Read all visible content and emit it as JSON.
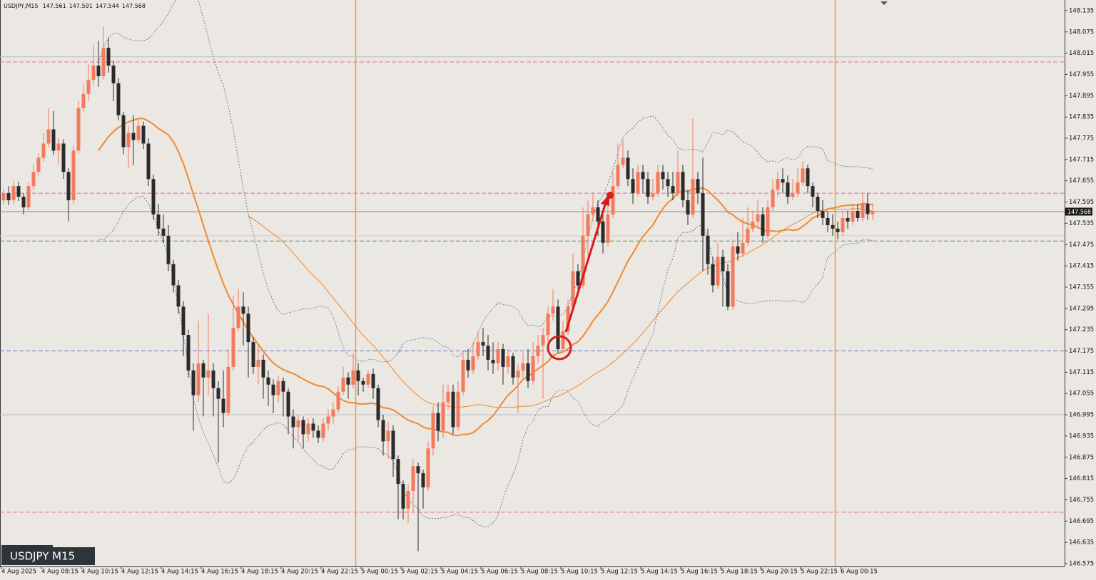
{
  "chart_data": {
    "type": "candlestick",
    "title": "USDJPY,M15",
    "label": "USDJPY M15",
    "up_color": "#f47a5c",
    "down_color": "#2b2b2b",
    "categories": [
      "4 Aug 2025",
      null,
      null,
      null,
      null,
      null,
      null,
      null,
      "4 Aug 08:15",
      null,
      null,
      null,
      null,
      null,
      null,
      null,
      "4 Aug 10:15",
      null,
      null,
      null,
      null,
      null,
      null,
      null,
      "4 Aug 12:15",
      null,
      null,
      null,
      null,
      null,
      null,
      null,
      "4 Aug 14:15",
      null,
      null,
      null,
      null,
      null,
      null,
      null,
      "4 Aug 16:15",
      null,
      null,
      null,
      null,
      null,
      null,
      null,
      "4 Aug 18:15",
      null,
      null,
      null,
      null,
      null,
      null,
      null,
      "4 Aug 20:15",
      null,
      null,
      null,
      null,
      null,
      null,
      null,
      "4 Aug 22:15",
      null,
      null,
      null,
      null,
      null,
      null,
      null,
      "5 Aug 00:15",
      null,
      null,
      null,
      null,
      null,
      null,
      null,
      "5 Aug 02:15",
      null,
      null,
      null,
      null,
      null,
      null,
      null,
      "5 Aug 04:15",
      null,
      null,
      null,
      null,
      null,
      null,
      null,
      "5 Aug 06:15",
      null,
      null,
      null,
      null,
      null,
      null,
      null,
      "5 Aug 08:15",
      null,
      null,
      null,
      null,
      null,
      null,
      null,
      "5 Aug 10:15",
      null,
      null,
      null,
      null,
      null,
      null,
      null,
      "5 Aug 12:15",
      null,
      null,
      null,
      null,
      null,
      null,
      null,
      "5 Aug 14:15",
      null,
      null,
      null,
      null,
      null,
      null,
      null,
      "5 Aug 16:15",
      null,
      null,
      null,
      null,
      null,
      null,
      null,
      "5 Aug 18:15",
      null,
      null,
      null,
      null,
      null,
      null,
      null,
      "5 Aug 20:15",
      null,
      null,
      null,
      null,
      null,
      null,
      null,
      "5 Aug 22:15",
      null,
      null,
      null,
      null,
      null,
      null,
      null,
      "6 Aug 00:15",
      null,
      null,
      null,
      null,
      null,
      null
    ],
    "open": [
      147.6,
      147.62,
      147.6,
      147.64,
      147.61,
      147.58,
      147.64,
      147.68,
      147.72,
      147.76,
      147.8,
      147.74,
      147.76,
      147.68,
      147.6,
      147.74,
      147.86,
      147.9,
      147.94,
      147.98,
      147.95,
      148.03,
      147.98,
      147.93,
      147.84,
      147.75,
      147.79,
      147.77,
      147.81,
      147.76,
      147.66,
      147.56,
      147.52,
      147.5,
      147.42,
      147.36,
      147.3,
      147.22,
      147.12,
      147.05,
      147.14,
      147.1,
      147.12,
      147.07,
      147.04,
      147.0,
      147.13,
      147.24,
      147.3,
      147.28,
      147.2,
      147.13,
      147.15,
      147.1,
      147.08,
      147.05,
      147.09,
      147.06,
      146.99,
      146.96,
      146.98,
      146.94,
      146.97,
      146.95,
      146.93,
      146.97,
      146.99,
      147.01,
      147.06,
      147.1,
      147.08,
      147.12,
      147.09,
      147.08,
      147.11,
      147.07,
      146.98,
      146.92,
      146.95,
      146.87,
      146.8,
      146.73,
      146.78,
      146.85,
      146.83,
      146.79,
      146.9,
      147.0,
      146.95,
      147.03,
      147.06,
      146.96,
      147.06,
      147.15,
      147.12,
      147.16,
      147.2,
      147.19,
      147.15,
      147.14,
      147.18,
      147.13,
      147.16,
      147.1,
      147.12,
      147.14,
      147.09,
      147.16,
      147.19,
      147.22,
      147.28,
      147.3,
      147.18,
      147.23,
      147.3,
      147.4,
      147.36,
      147.5,
      147.56,
      147.58,
      147.54,
      147.48,
      147.56,
      147.64,
      147.7,
      147.72,
      147.66,
      147.62,
      147.68,
      147.66,
      147.61,
      147.62,
      147.68,
      147.66,
      147.64,
      147.62,
      147.68,
      147.6,
      147.56,
      147.66,
      147.62,
      147.5,
      147.42,
      147.36,
      147.44,
      147.4,
      147.3,
      147.47,
      147.45,
      147.48,
      147.52,
      147.54,
      147.56,
      147.5,
      147.58,
      147.63,
      147.66,
      147.65,
      147.61,
      147.62,
      147.65,
      147.69,
      147.64,
      147.61,
      147.57,
      147.55,
      147.53,
      147.52,
      147.51,
      147.55,
      147.54,
      147.57,
      147.55,
      147.59,
      147.561
    ],
    "high": [
      147.632,
      147.64,
      147.655,
      147.652,
      147.62,
      147.651,
      147.7,
      147.733,
      147.79,
      147.86,
      147.852,
      147.775,
      147.772,
      147.69,
      147.755,
      147.88,
      147.93,
      147.985,
      148.04,
      148.05,
      148.09,
      148.06,
      147.995,
      147.945,
      147.85,
      147.81,
      147.84,
      147.83,
      147.822,
      147.775,
      147.672,
      147.59,
      147.56,
      147.53,
      147.432,
      147.375,
      147.315,
      147.235,
      147.14,
      147.26,
      147.15,
      147.28,
      147.14,
      147.09,
      147.12,
      147.18,
      147.33,
      147.35,
      147.34,
      147.3,
      147.215,
      147.19,
      147.165,
      147.12,
      147.095,
      147.105,
      147.1,
      147.07,
      147.01,
      146.995,
      146.99,
      146.985,
      146.985,
      146.965,
      146.985,
      147.01,
      147.03,
      147.075,
      147.13,
      147.115,
      147.17,
      147.14,
      147.1,
      147.12,
      147.125,
      147.08,
      146.995,
      146.975,
      146.965,
      146.88,
      146.81,
      146.8,
      146.87,
      146.86,
      146.84,
      146.92,
      147.02,
      147.03,
      147.08,
      147.08,
      147.08,
      147.09,
      147.17,
      147.18,
      147.2,
      147.23,
      147.24,
      147.22,
      147.2,
      147.2,
      147.195,
      147.18,
      147.17,
      147.14,
      147.17,
      147.18,
      147.2,
      147.22,
      147.24,
      147.3,
      147.35,
      147.32,
      147.26,
      147.32,
      147.45,
      147.42,
      147.58,
      147.6,
      147.62,
      147.6,
      147.56,
      147.6,
      147.68,
      147.76,
      147.77,
      147.74,
      147.69,
      147.7,
      147.7,
      147.68,
      147.66,
      147.7,
      147.7,
      147.68,
      147.68,
      147.74,
      147.7,
      147.63,
      147.83,
      147.68,
      147.72,
      147.52,
      147.44,
      147.48,
      147.46,
      147.42,
      147.49,
      147.51,
      147.55,
      147.58,
      147.57,
      147.6,
      147.58,
      147.6,
      147.66,
      147.68,
      147.69,
      147.67,
      147.66,
      147.69,
      147.71,
      147.7,
      147.65,
      147.62,
      147.6,
      147.57,
      147.56,
      147.54,
      147.57,
      147.57,
      147.59,
      147.59,
      147.62,
      147.62,
      147.591
    ],
    "low": [
      147.589,
      147.586,
      147.59,
      147.598,
      147.56,
      147.57,
      147.628,
      147.67,
      147.708,
      147.75,
      147.728,
      147.7,
      147.66,
      147.54,
      147.59,
      147.73,
      147.85,
      147.88,
      147.925,
      147.92,
      147.94,
      147.96,
      147.88,
      147.825,
      147.73,
      147.69,
      147.7,
      147.76,
      147.745,
      147.64,
      147.545,
      147.5,
      147.48,
      147.4,
      147.34,
      147.28,
      147.16,
      147.1,
      146.95,
      147.03,
      146.99,
      147.05,
      146.99,
      146.86,
      146.96,
      146.99,
      147.12,
      147.23,
      147.19,
      147.1,
      147.11,
      147.08,
      147.04,
      147.02,
      147.0,
      147.03,
      146.99,
      146.94,
      146.9,
      146.92,
      146.9,
      146.92,
      146.93,
      146.915,
      146.92,
      146.95,
      146.97,
      147.0,
      147.05,
      147.04,
      147.07,
      147.05,
      147.06,
      147.07,
      147.04,
      146.96,
      146.88,
      146.87,
      146.82,
      146.7,
      146.7,
      146.69,
      146.72,
      146.61,
      146.73,
      146.78,
      146.88,
      146.92,
      146.93,
      147.01,
      146.94,
      146.95,
      147.05,
      147.1,
      147.11,
      147.15,
      147.16,
      147.12,
      147.11,
      147.12,
      147.08,
      147.11,
      147.08,
      147.0,
      147.1,
      147.07,
      147.08,
      147.14,
      147.04,
      147.2,
      147.26,
      147.17,
      147.17,
      147.22,
      147.29,
      147.33,
      147.35,
      147.44,
      147.54,
      147.5,
      147.45,
      147.47,
      147.55,
      147.63,
      147.69,
      147.64,
      147.59,
      147.61,
      147.62,
      147.59,
      147.6,
      147.61,
      147.63,
      147.61,
      147.6,
      147.61,
      147.58,
      147.53,
      147.55,
      147.59,
      147.4,
      147.39,
      147.34,
      147.35,
      147.3,
      147.29,
      147.29,
      147.43,
      147.44,
      147.47,
      147.51,
      147.52,
      147.48,
      147.49,
      147.57,
      147.61,
      147.62,
      147.59,
      147.6,
      147.61,
      147.64,
      147.62,
      147.58,
      147.55,
      147.53,
      147.51,
      147.5,
      147.49,
      147.5,
      147.52,
      147.53,
      147.54,
      147.54,
      147.545,
      147.544
    ],
    "close": [
      147.62,
      147.6,
      147.64,
      147.61,
      147.58,
      147.64,
      147.68,
      147.72,
      147.76,
      147.8,
      147.74,
      147.76,
      147.68,
      147.6,
      147.74,
      147.86,
      147.9,
      147.94,
      147.98,
      147.95,
      148.03,
      147.98,
      147.93,
      147.84,
      147.75,
      147.79,
      147.77,
      147.81,
      147.76,
      147.66,
      147.56,
      147.52,
      147.5,
      147.42,
      147.36,
      147.3,
      147.22,
      147.12,
      147.05,
      147.14,
      147.1,
      147.12,
      147.07,
      147.04,
      147.0,
      147.13,
      147.24,
      147.3,
      147.28,
      147.2,
      147.13,
      147.15,
      147.1,
      147.08,
      147.05,
      147.09,
      147.06,
      146.99,
      146.96,
      146.98,
      146.94,
      146.97,
      146.95,
      146.93,
      146.97,
      146.99,
      147.01,
      147.06,
      147.1,
      147.08,
      147.12,
      147.09,
      147.08,
      147.11,
      147.07,
      146.98,
      146.92,
      146.95,
      146.87,
      146.8,
      146.73,
      146.78,
      146.85,
      146.83,
      146.79,
      146.9,
      147.0,
      146.95,
      147.03,
      147.06,
      146.96,
      147.06,
      147.15,
      147.12,
      147.16,
      147.2,
      147.19,
      147.15,
      147.14,
      147.18,
      147.13,
      147.16,
      147.1,
      147.12,
      147.14,
      147.09,
      147.16,
      147.19,
      147.22,
      147.28,
      147.3,
      147.18,
      147.23,
      147.3,
      147.4,
      147.36,
      147.5,
      147.56,
      147.58,
      147.54,
      147.48,
      147.56,
      147.64,
      147.7,
      147.72,
      147.66,
      147.62,
      147.68,
      147.66,
      147.61,
      147.62,
      147.68,
      147.66,
      147.64,
      147.62,
      147.68,
      147.6,
      147.56,
      147.66,
      147.62,
      147.5,
      147.42,
      147.36,
      147.44,
      147.4,
      147.3,
      147.47,
      147.45,
      147.48,
      147.52,
      147.54,
      147.56,
      147.5,
      147.58,
      147.63,
      147.66,
      147.65,
      147.61,
      147.62,
      147.65,
      147.69,
      147.64,
      147.61,
      147.57,
      147.55,
      147.53,
      147.52,
      147.51,
      147.55,
      147.54,
      147.57,
      147.55,
      147.59,
      147.561,
      147.568
    ],
    "ylim": [
      146.575,
      148.165
    ],
    "yticks": [
      148.135,
      148.075,
      148.015,
      147.955,
      147.895,
      147.835,
      147.775,
      147.715,
      147.655,
      147.595,
      147.535,
      147.475,
      147.415,
      147.355,
      147.295,
      147.235,
      147.175,
      147.115,
      147.055,
      146.995,
      146.935,
      146.875,
      146.815,
      146.755,
      146.695,
      146.635,
      146.575
    ],
    "levels": [
      {
        "value": 147.99,
        "color": "#e86a9c",
        "style": "dash"
      },
      {
        "value": 148.005,
        "color": "#bdbdbd",
        "style": "solid"
      },
      {
        "value": 147.62,
        "color": "#e86a9c",
        "style": "dash"
      },
      {
        "value": 147.5,
        "color": "#cfcfcf",
        "style": "solid"
      },
      {
        "value": 147.485,
        "color": "#4f9a6a",
        "style": "dash"
      },
      {
        "value": 147.175,
        "color": "#5b7fc0",
        "style": "dash"
      },
      {
        "value": 146.995,
        "color": "#bdbdbd",
        "style": "solid"
      },
      {
        "value": 146.72,
        "color": "#e86a9c",
        "style": "dash"
      }
    ]
  }
}
